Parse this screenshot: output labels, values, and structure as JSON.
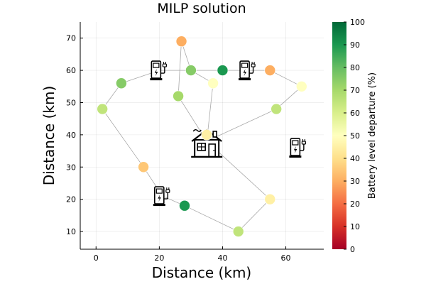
{
  "chart_data": {
    "type": "scatter",
    "title": "MILP solution",
    "xlabel": "Distance (km)",
    "ylabel": "Distance (km)",
    "xlim": [
      -5,
      72
    ],
    "ylim": [
      4.5,
      75
    ],
    "xticks": [
      0,
      20,
      40,
      60
    ],
    "yticks": [
      10,
      20,
      30,
      40,
      50,
      60,
      70
    ],
    "grid": true,
    "colorbar": {
      "label": "Battery level departure (%)",
      "range": [
        0,
        100
      ],
      "ticks": [
        0,
        10,
        20,
        30,
        40,
        50,
        60,
        70,
        80,
        90,
        100
      ],
      "colormap": "RdYlGn"
    },
    "depot": {
      "x": 35,
      "y": 38,
      "icon": "house-icon"
    },
    "stations": [
      {
        "x": 20,
        "y": 60,
        "icon": "charging-station-icon"
      },
      {
        "x": 48,
        "y": 60,
        "icon": "charging-station-icon"
      },
      {
        "x": 64,
        "y": 36,
        "icon": "charging-station-icon"
      },
      {
        "x": 21,
        "y": 21,
        "icon": "charging-station-icon"
      }
    ],
    "customers": [
      {
        "x": 27,
        "y": 69,
        "battery": 30
      },
      {
        "x": 30,
        "y": 60,
        "battery": 75
      },
      {
        "x": 40,
        "y": 60,
        "battery": 90
      },
      {
        "x": 55,
        "y": 60,
        "battery": 30
      },
      {
        "x": 65,
        "y": 55,
        "battery": 50
      },
      {
        "x": 37,
        "y": 56,
        "battery": 50
      },
      {
        "x": 26,
        "y": 52,
        "battery": 70
      },
      {
        "x": 8,
        "y": 56,
        "battery": 75
      },
      {
        "x": 2,
        "y": 48,
        "battery": 65
      },
      {
        "x": 57,
        "y": 48,
        "battery": 65
      },
      {
        "x": 35,
        "y": 40,
        "battery": 45
      },
      {
        "x": 15,
        "y": 30,
        "battery": 35
      },
      {
        "x": 55,
        "y": 20,
        "battery": 45
      },
      {
        "x": 28,
        "y": 18,
        "battery": 90
      },
      {
        "x": 45,
        "y": 10,
        "battery": 65
      }
    ],
    "routes": [
      [
        [
          35,
          38
        ],
        [
          26,
          52
        ],
        [
          27,
          69
        ],
        [
          30,
          60
        ],
        [
          40,
          60
        ],
        [
          48,
          60
        ],
        [
          55,
          60
        ],
        [
          65,
          55
        ],
        [
          57,
          48
        ],
        [
          35,
          38
        ]
      ],
      [
        [
          35,
          38
        ],
        [
          37,
          56
        ],
        [
          30,
          60
        ],
        [
          20,
          60
        ],
        [
          8,
          56
        ],
        [
          2,
          48
        ],
        [
          15,
          30
        ],
        [
          21,
          21
        ],
        [
          28,
          18
        ],
        [
          45,
          10
        ],
        [
          55,
          20
        ],
        [
          35,
          38
        ]
      ]
    ]
  }
}
